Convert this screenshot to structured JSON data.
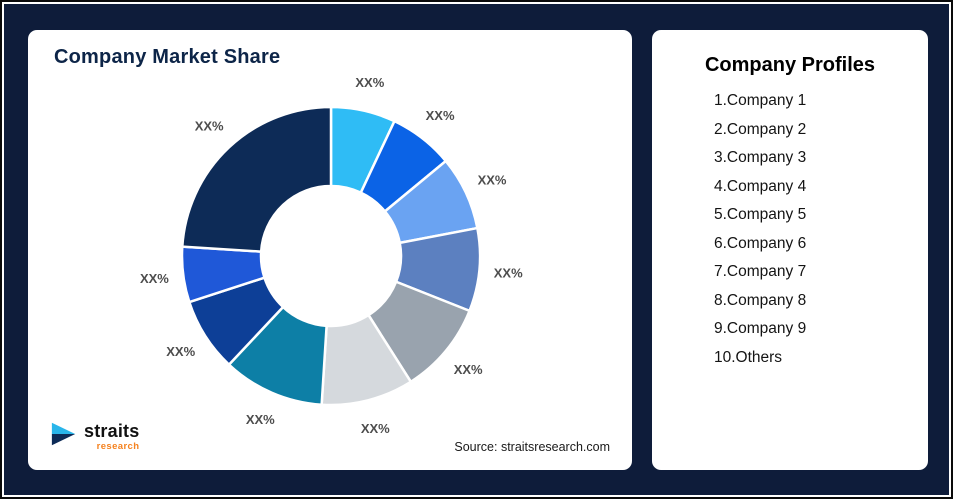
{
  "theme": {
    "page_background": "#0e1c3a",
    "card_background": "#ffffff",
    "title_color": "#0d2548",
    "label_color": "#4d4d4d",
    "logo_accent": "#f5821f",
    "logo_icon_top": "#29b5ea",
    "logo_icon_bottom": "#0d2b57"
  },
  "left_card": {
    "title": "Company Market Share",
    "source": "Source: straitsresearch.com",
    "logo": {
      "name": "straits",
      "sub": "research"
    }
  },
  "right_card": {
    "title": "Company Profiles",
    "items": [
      "1.Company 1",
      "2.Company 2",
      "3.Company 3",
      "4.Company 4",
      "5.Company 5",
      "6.Company 6",
      "7.Company 7",
      "8.Company 8",
      "9.Company 9",
      "10.Others"
    ]
  },
  "chart_data": {
    "type": "pie",
    "subtype": "donut",
    "title": "Company Market Share",
    "labels": [
      "Company 1",
      "Company 2",
      "Company 3",
      "Company 4",
      "Company 5",
      "Company 6",
      "Company 7",
      "Company 8",
      "Company 9",
      "Others"
    ],
    "values": [
      7,
      7,
      8,
      9,
      10,
      10,
      11,
      8,
      6,
      24
    ],
    "display_labels": [
      "XX%",
      "XX%",
      "XX%",
      "XX%",
      "XX%",
      "XX%",
      "XX%",
      "XX%",
      "XX%",
      "XX%"
    ],
    "colors": [
      "#2fbcf5",
      "#0b63e6",
      "#6aa3f2",
      "#5c80c0",
      "#99a3ae",
      "#d5d9dd",
      "#0d7fa6",
      "#0d3f97",
      "#1f58d8",
      "#0d2b57"
    ],
    "start_angle_deg": 0,
    "direction": "clockwise",
    "inner_radius_ratio": 0.47,
    "separator_color": "#ffffff",
    "legend": "none",
    "grid": "off"
  }
}
